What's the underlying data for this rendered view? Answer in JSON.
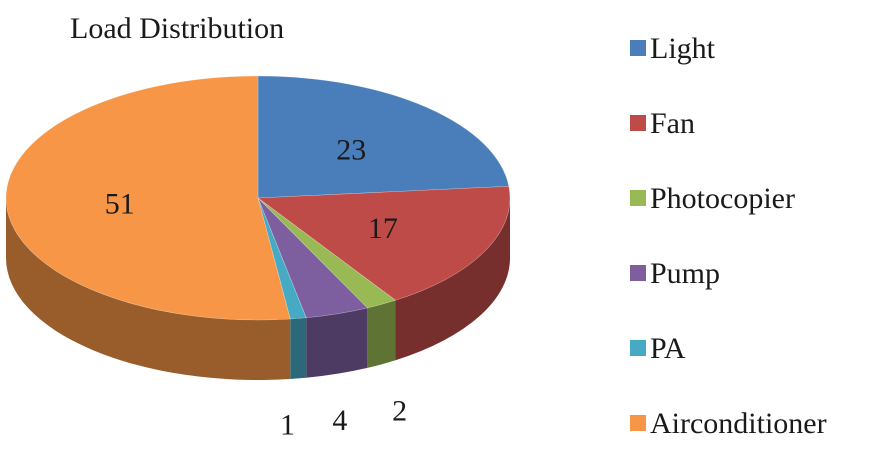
{
  "chart_data": {
    "type": "pie",
    "title": "Load Distribution",
    "categories": [
      "Light",
      "Fan",
      "Photocopier",
      "Pump",
      "PA",
      "Airconditioner"
    ],
    "values": [
      23,
      17,
      2,
      4,
      1,
      51
    ],
    "data_labels": [
      "23",
      "17",
      "2",
      "4",
      "1",
      "51"
    ],
    "colors": [
      "#4a7ebb",
      "#be4b48",
      "#98b954",
      "#7d5fa0",
      "#46aac5",
      "#f79646"
    ],
    "legend": {
      "position": "right",
      "entries": [
        "Light",
        "Fan",
        "Photocopier",
        "Pump",
        "PA",
        "Airconditioner"
      ]
    },
    "style": "3d"
  }
}
